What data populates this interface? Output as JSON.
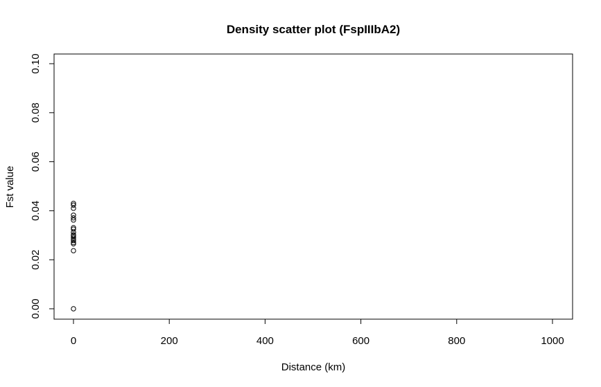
{
  "chart_data": {
    "type": "scatter",
    "title": "Density scatter plot (FspIIIbA2)",
    "xlabel": "Distance (km)",
    "ylabel": "Fst value",
    "xlim": [
      0,
      1000
    ],
    "ylim": [
      0,
      0.1
    ],
    "xticks": [
      "0",
      "200",
      "400",
      "600",
      "800",
      "1000"
    ],
    "yticks": [
      "0.00",
      "0.02",
      "0.04",
      "0.06",
      "0.08",
      "0.10"
    ],
    "grid": false,
    "series": [
      {
        "marker": "open-circle",
        "x": [
          0,
          0,
          0,
          0,
          0,
          0,
          0,
          0,
          0,
          0,
          0,
          0,
          0,
          0,
          0,
          0,
          0,
          0
        ],
        "y": [
          0.043,
          0.0423,
          0.041,
          0.0382,
          0.0371,
          0.0362,
          0.0331,
          0.0325,
          0.0312,
          0.0302,
          0.0298,
          0.0291,
          0.0284,
          0.0278,
          0.027,
          0.0265,
          0.0237,
          0.0
        ]
      }
    ]
  },
  "colors": {
    "points": "#000000",
    "axes": "#000000",
    "background": "#ffffff"
  }
}
